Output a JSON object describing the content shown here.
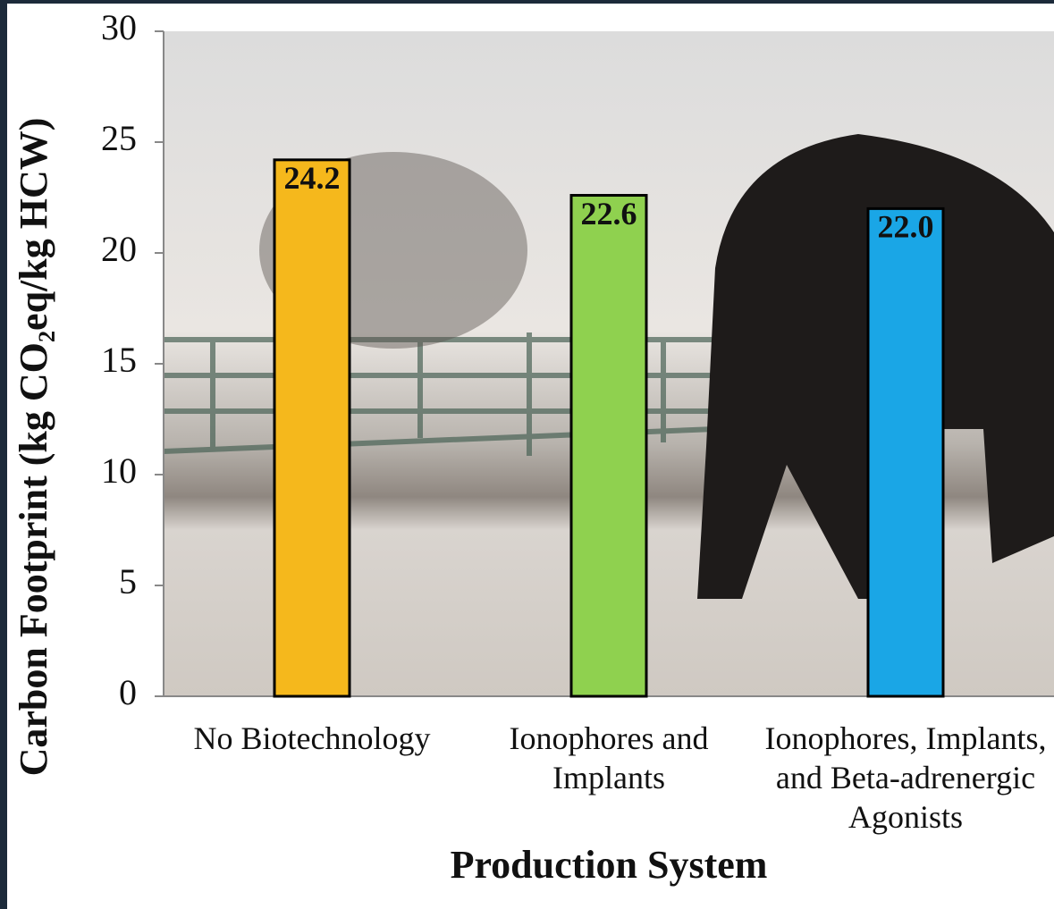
{
  "chart_data": {
    "type": "bar",
    "categories": [
      "No Biotechnology",
      "Ionophores and Implants",
      "Ionophores, Implants, and Beta-adrenergic Agonists"
    ],
    "values": [
      24.2,
      22.6,
      22.0
    ],
    "value_labels": [
      "24.2",
      "22.6",
      "22.0"
    ],
    "colors": [
      "#f5b81c",
      "#8fd14f",
      "#1aa6e6"
    ],
    "x_label": "Production System",
    "y_label": "Carbon Footprint (kg CO₂eq/kg HCW)",
    "ylim": [
      0,
      30
    ],
    "yticks": [
      0,
      5,
      10,
      15,
      20,
      25,
      30
    ]
  }
}
